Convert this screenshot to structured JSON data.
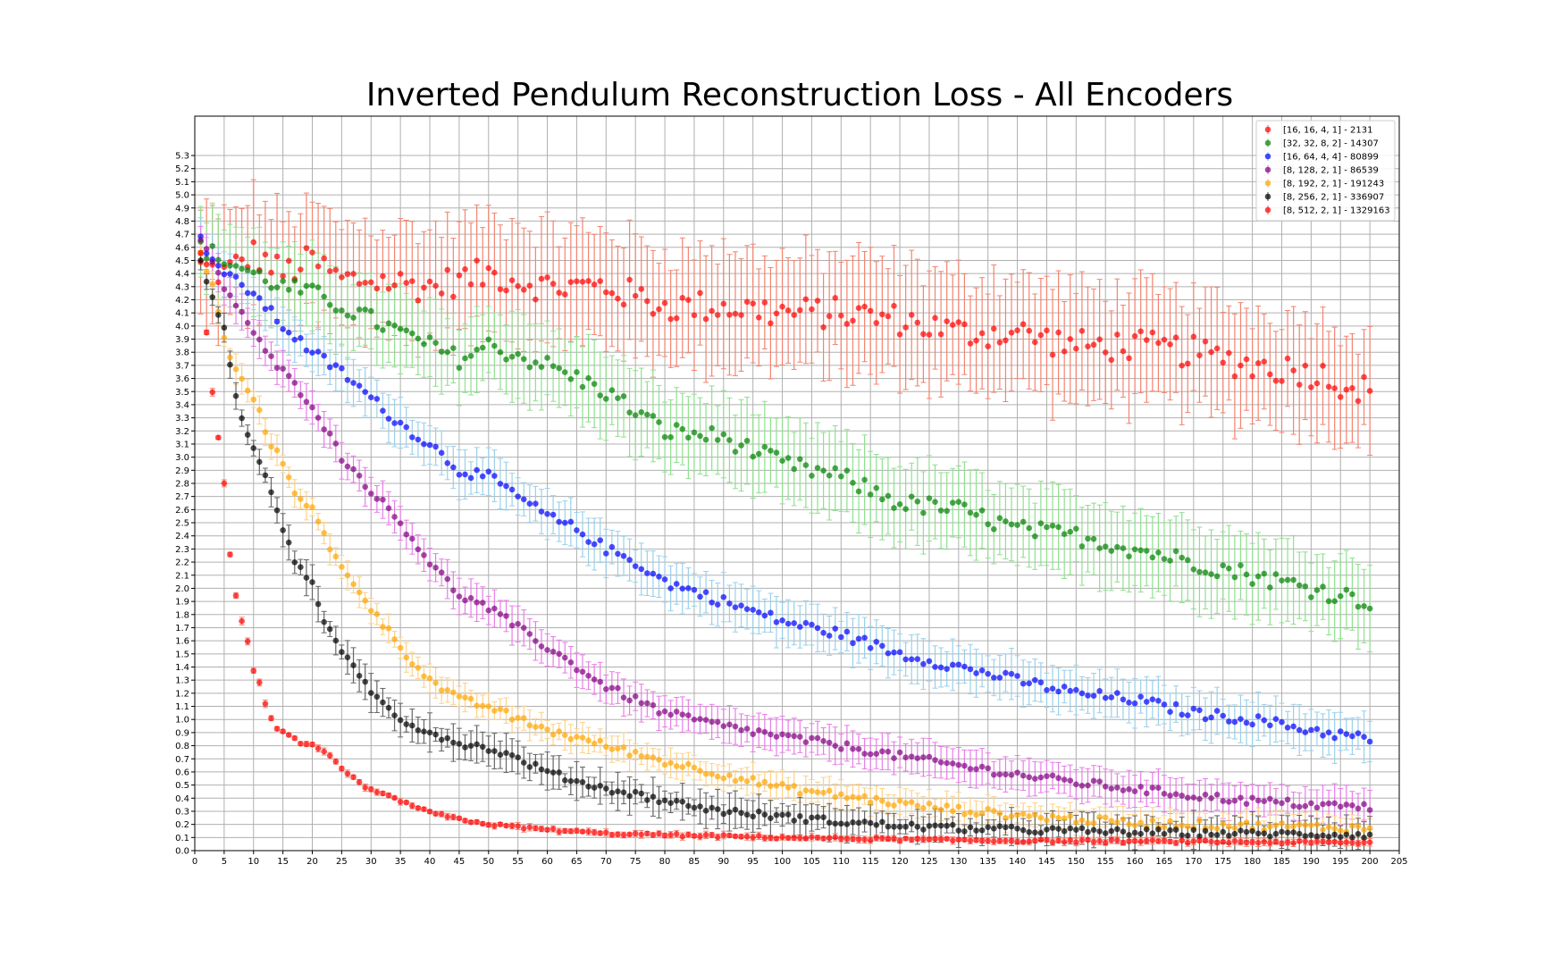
{
  "chart_data": {
    "type": "scatter",
    "title": "Inverted Pendulum Reconstruction Loss - All Encoders",
    "xlabel": "",
    "ylabel": "",
    "xlim": [
      0,
      205
    ],
    "ylim": [
      0,
      5.6
    ],
    "x_ticks": [
      0,
      5,
      10,
      15,
      20,
      25,
      30,
      35,
      40,
      45,
      50,
      55,
      60,
      65,
      70,
      75,
      80,
      85,
      90,
      95,
      100,
      105,
      110,
      115,
      120,
      125,
      130,
      135,
      140,
      145,
      150,
      155,
      160,
      165,
      170,
      175,
      180,
      185,
      190,
      195,
      200,
      205
    ],
    "y_ticks": [
      0.0,
      0.1,
      0.2,
      0.3,
      0.4,
      0.5,
      0.6,
      0.7,
      0.8,
      0.9,
      1.0,
      1.1,
      1.2,
      1.3,
      1.4,
      1.5,
      1.6,
      1.7,
      1.8,
      1.9,
      2.0,
      2.1,
      2.2,
      2.3,
      2.4,
      2.5,
      2.6,
      2.7,
      2.8,
      2.9,
      3.0,
      3.1,
      3.2,
      3.3,
      3.4,
      3.5,
      3.6,
      3.7,
      3.8,
      3.9,
      4.0,
      4.1,
      4.2,
      4.3,
      4.4,
      4.5,
      4.6,
      4.7,
      4.8,
      4.9,
      5.0,
      5.1,
      5.2,
      5.3
    ],
    "grid": true,
    "legend_position": "top-right",
    "x_range": [
      1,
      200
    ],
    "series": [
      {
        "name": "[16, 16, 4, 1] - 2131",
        "color": "#ff0000",
        "err_color": "#f4836f",
        "points": [
          [
            1,
            4.45
          ],
          [
            5,
            4.4
          ],
          [
            10,
            4.55
          ],
          [
            15,
            4.4
          ],
          [
            20,
            4.5
          ],
          [
            25,
            4.35
          ],
          [
            30,
            4.35
          ],
          [
            40,
            4.3
          ],
          [
            50,
            4.4
          ],
          [
            60,
            4.3
          ],
          [
            70,
            4.3
          ],
          [
            80,
            4.15
          ],
          [
            90,
            4.15
          ],
          [
            100,
            4.1
          ],
          [
            110,
            4.1
          ],
          [
            120,
            4.05
          ],
          [
            130,
            3.95
          ],
          [
            140,
            3.95
          ],
          [
            150,
            3.85
          ],
          [
            160,
            3.85
          ],
          [
            170,
            3.8
          ],
          [
            180,
            3.7
          ],
          [
            190,
            3.65
          ],
          [
            200,
            3.5
          ]
        ],
        "noise": 0.12,
        "err": [
          0.35,
          0.5
        ]
      },
      {
        "name": "[32, 32, 8, 2] - 14307",
        "color": "#008000",
        "err_color": "#8fe08f",
        "points": [
          [
            1,
            4.6
          ],
          [
            5,
            4.5
          ],
          [
            10,
            4.4
          ],
          [
            15,
            4.3
          ],
          [
            20,
            4.25
          ],
          [
            25,
            4.15
          ],
          [
            30,
            4.05
          ],
          [
            35,
            3.95
          ],
          [
            40,
            3.85
          ],
          [
            45,
            3.75
          ],
          [
            50,
            3.85
          ],
          [
            60,
            3.7
          ],
          [
            70,
            3.5
          ],
          [
            80,
            3.2
          ],
          [
            90,
            3.15
          ],
          [
            100,
            2.95
          ],
          [
            110,
            2.85
          ],
          [
            120,
            2.65
          ],
          [
            130,
            2.6
          ],
          [
            140,
            2.45
          ],
          [
            150,
            2.4
          ],
          [
            160,
            2.3
          ],
          [
            170,
            2.2
          ],
          [
            180,
            2.1
          ],
          [
            190,
            2.0
          ],
          [
            200,
            1.9
          ]
        ],
        "noise": 0.07,
        "err": [
          0.25,
          0.35
        ]
      },
      {
        "name": "[16, 64, 4, 4] - 80899",
        "color": "#0000ff",
        "err_color": "#9ad0ea",
        "points": [
          [
            1,
            4.65
          ],
          [
            5,
            4.4
          ],
          [
            10,
            4.25
          ],
          [
            15,
            4.0
          ],
          [
            20,
            3.8
          ],
          [
            25,
            3.65
          ],
          [
            30,
            3.45
          ],
          [
            35,
            3.25
          ],
          [
            40,
            3.1
          ],
          [
            45,
            2.9
          ],
          [
            50,
            2.85
          ],
          [
            55,
            2.7
          ],
          [
            60,
            2.55
          ],
          [
            65,
            2.45
          ],
          [
            70,
            2.3
          ],
          [
            75,
            2.2
          ],
          [
            80,
            2.05
          ],
          [
            90,
            1.9
          ],
          [
            100,
            1.75
          ],
          [
            110,
            1.65
          ],
          [
            120,
            1.5
          ],
          [
            130,
            1.4
          ],
          [
            140,
            1.3
          ],
          [
            150,
            1.2
          ],
          [
            160,
            1.15
          ],
          [
            170,
            1.05
          ],
          [
            180,
            1.0
          ],
          [
            190,
            0.92
          ],
          [
            200,
            0.85
          ]
        ],
        "noise": 0.04,
        "err": [
          0.12,
          0.2
        ]
      },
      {
        "name": "[8, 128, 2, 1] - 86539",
        "color": "#800080",
        "err_color": "#e87de8",
        "points": [
          [
            1,
            4.65
          ],
          [
            5,
            4.3
          ],
          [
            8,
            4.1
          ],
          [
            10,
            3.95
          ],
          [
            12,
            3.8
          ],
          [
            15,
            3.65
          ],
          [
            20,
            3.4
          ],
          [
            25,
            3.0
          ],
          [
            30,
            2.75
          ],
          [
            35,
            2.5
          ],
          [
            40,
            2.2
          ],
          [
            45,
            1.95
          ],
          [
            50,
            1.85
          ],
          [
            55,
            1.7
          ],
          [
            60,
            1.55
          ],
          [
            65,
            1.4
          ],
          [
            70,
            1.25
          ],
          [
            75,
            1.15
          ],
          [
            80,
            1.05
          ],
          [
            90,
            0.95
          ],
          [
            100,
            0.87
          ],
          [
            110,
            0.8
          ],
          [
            120,
            0.72
          ],
          [
            130,
            0.65
          ],
          [
            140,
            0.58
          ],
          [
            150,
            0.52
          ],
          [
            160,
            0.47
          ],
          [
            170,
            0.42
          ],
          [
            180,
            0.38
          ],
          [
            190,
            0.35
          ],
          [
            200,
            0.33
          ]
        ],
        "noise": 0.03,
        "err": [
          0.1,
          0.15
        ]
      },
      {
        "name": "[8, 192, 2, 1] - 191243",
        "color": "#ffa500",
        "err_color": "#fcd28a",
        "points": [
          [
            1,
            4.55
          ],
          [
            3,
            4.3
          ],
          [
            5,
            3.9
          ],
          [
            7,
            3.65
          ],
          [
            10,
            3.45
          ],
          [
            13,
            3.1
          ],
          [
            15,
            2.95
          ],
          [
            17,
            2.75
          ],
          [
            20,
            2.6
          ],
          [
            23,
            2.3
          ],
          [
            25,
            2.15
          ],
          [
            27,
            2.05
          ],
          [
            30,
            1.85
          ],
          [
            35,
            1.55
          ],
          [
            40,
            1.3
          ],
          [
            45,
            1.15
          ],
          [
            50,
            1.1
          ],
          [
            55,
            1.0
          ],
          [
            60,
            0.92
          ],
          [
            70,
            0.8
          ],
          [
            80,
            0.68
          ],
          [
            90,
            0.58
          ],
          [
            100,
            0.48
          ],
          [
            110,
            0.42
          ],
          [
            120,
            0.36
          ],
          [
            130,
            0.31
          ],
          [
            140,
            0.27
          ],
          [
            150,
            0.24
          ],
          [
            160,
            0.21
          ],
          [
            170,
            0.2
          ],
          [
            180,
            0.19
          ],
          [
            190,
            0.18
          ],
          [
            200,
            0.17
          ]
        ],
        "noise": 0.03,
        "err": [
          0.06,
          0.12
        ]
      },
      {
        "name": "[8, 256, 2, 1] - 336907",
        "color": "#000000",
        "err_color": "#666666",
        "points": [
          [
            1,
            4.5
          ],
          [
            3,
            4.2
          ],
          [
            5,
            4.0
          ],
          [
            7,
            3.45
          ],
          [
            10,
            3.05
          ],
          [
            13,
            2.75
          ],
          [
            15,
            2.45
          ],
          [
            17,
            2.2
          ],
          [
            20,
            2.05
          ],
          [
            22,
            1.75
          ],
          [
            25,
            1.5
          ],
          [
            28,
            1.35
          ],
          [
            30,
            1.2
          ],
          [
            33,
            1.1
          ],
          [
            35,
            1.0
          ],
          [
            40,
            0.9
          ],
          [
            45,
            0.82
          ],
          [
            50,
            0.78
          ],
          [
            55,
            0.7
          ],
          [
            60,
            0.6
          ],
          [
            65,
            0.53
          ],
          [
            70,
            0.47
          ],
          [
            75,
            0.43
          ],
          [
            80,
            0.38
          ],
          [
            90,
            0.3
          ],
          [
            100,
            0.26
          ],
          [
            110,
            0.22
          ],
          [
            120,
            0.19
          ],
          [
            130,
            0.17
          ],
          [
            140,
            0.16
          ],
          [
            150,
            0.15
          ],
          [
            160,
            0.14
          ],
          [
            170,
            0.135
          ],
          [
            180,
            0.13
          ],
          [
            190,
            0.125
          ],
          [
            200,
            0.12
          ]
        ],
        "noise": 0.025,
        "err": [
          0.05,
          0.15
        ]
      },
      {
        "name": "[8, 512, 2, 1] - 1329163",
        "color": "#ff0000",
        "err_color": "#f4836f",
        "points": [
          [
            1,
            4.55
          ],
          [
            2,
            3.95
          ],
          [
            3,
            3.5
          ],
          [
            4,
            3.15
          ],
          [
            5,
            2.8
          ],
          [
            6,
            2.25
          ],
          [
            7,
            1.95
          ],
          [
            8,
            1.75
          ],
          [
            9,
            1.6
          ],
          [
            10,
            1.38
          ],
          [
            11,
            1.28
          ],
          [
            12,
            1.12
          ],
          [
            13,
            1.0
          ],
          [
            14,
            0.92
          ],
          [
            16,
            0.88
          ],
          [
            18,
            0.82
          ],
          [
            20,
            0.8
          ],
          [
            23,
            0.72
          ],
          [
            25,
            0.62
          ],
          [
            28,
            0.52
          ],
          [
            30,
            0.46
          ],
          [
            35,
            0.38
          ],
          [
            40,
            0.29
          ],
          [
            45,
            0.24
          ],
          [
            50,
            0.2
          ],
          [
            55,
            0.18
          ],
          [
            60,
            0.16
          ],
          [
            70,
            0.13
          ],
          [
            80,
            0.12
          ],
          [
            100,
            0.1
          ],
          [
            120,
            0.085
          ],
          [
            140,
            0.075
          ],
          [
            160,
            0.07
          ],
          [
            180,
            0.065
          ],
          [
            200,
            0.06
          ]
        ],
        "noise": 0.01,
        "err": [
          0.01,
          0.03
        ]
      }
    ]
  }
}
